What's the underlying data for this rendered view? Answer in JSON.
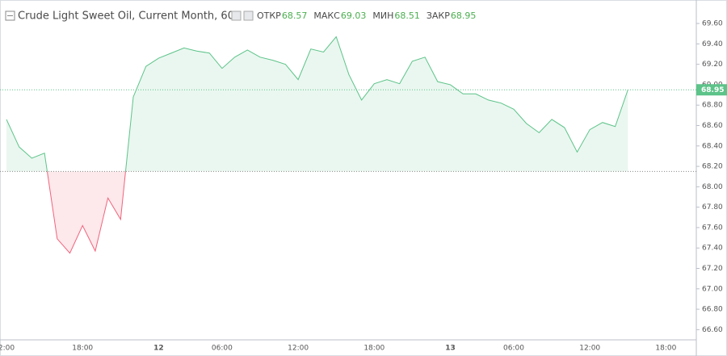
{
  "chart_data": {
    "type": "baseline-area",
    "title": "Crude Light Sweet Oil, Current Month, 60",
    "ohlc": [
      {
        "label": "ОТКР",
        "value": "68.57"
      },
      {
        "label": "МАКС",
        "value": "69.03"
      },
      {
        "label": "МИН",
        "value": "68.51"
      },
      {
        "label": "ЗАКР",
        "value": "68.95"
      }
    ],
    "categories": [
      "2:00",
      null,
      null,
      null,
      null,
      null,
      "18:00",
      null,
      null,
      null,
      null,
      null,
      "12",
      null,
      null,
      null,
      null,
      "06:00",
      null,
      null,
      null,
      null,
      null,
      "12:00",
      null,
      null,
      null,
      null,
      null,
      "18:00",
      null,
      null,
      null,
      null,
      null,
      "13",
      null,
      null,
      null,
      null,
      "06:00",
      null,
      null,
      null,
      null,
      null,
      "12:00",
      null,
      null,
      null,
      null,
      null,
      "18:00"
    ],
    "series": [
      {
        "name": "Crude Light Sweet Oil",
        "color": "#5cc389",
        "down_color": "#f0637b",
        "values": [
          68.66,
          68.39,
          68.28,
          68.33,
          67.49,
          67.35,
          67.62,
          67.37,
          67.89,
          67.68,
          68.88,
          69.18,
          69.26,
          69.31,
          69.36,
          69.33,
          69.31,
          69.16,
          69.27,
          69.34,
          69.27,
          69.24,
          69.2,
          69.05,
          69.35,
          69.32,
          69.47,
          69.1,
          68.85,
          69.01,
          69.05,
          69.01,
          69.23,
          69.27,
          69.03,
          69.0,
          68.91,
          68.91,
          68.85,
          68.82,
          68.76,
          68.62,
          68.53,
          68.66,
          68.58,
          68.34,
          68.56,
          68.63,
          68.59,
          68.95,
          null,
          null,
          null
        ]
      }
    ],
    "baseline": 68.15,
    "last_value": 68.95,
    "ylim": [
      66.5,
      69.83
    ],
    "yticks": [
      {
        "value": 66.6,
        "label": "66.60"
      },
      {
        "value": 66.8,
        "label": "66.80"
      },
      {
        "value": 67.0,
        "label": "67.00"
      },
      {
        "value": 67.2,
        "label": "67.20"
      },
      {
        "value": 67.4,
        "label": "67.40"
      },
      {
        "value": 67.6,
        "label": "67.60"
      },
      {
        "value": 67.8,
        "label": "67.80"
      },
      {
        "value": 68.0,
        "label": "68.00"
      },
      {
        "value": 68.2,
        "label": "68.20"
      },
      {
        "value": 68.4,
        "label": "68.40"
      },
      {
        "value": 68.6,
        "label": "68.60"
      },
      {
        "value": 68.8,
        "label": "68.80"
      },
      {
        "value": 69.0,
        "label": "69.00"
      },
      {
        "value": 69.2,
        "label": "69.20"
      },
      {
        "value": 69.4,
        "label": "69.40"
      },
      {
        "value": 69.6,
        "label": "69.60"
      }
    ],
    "grid": false
  }
}
